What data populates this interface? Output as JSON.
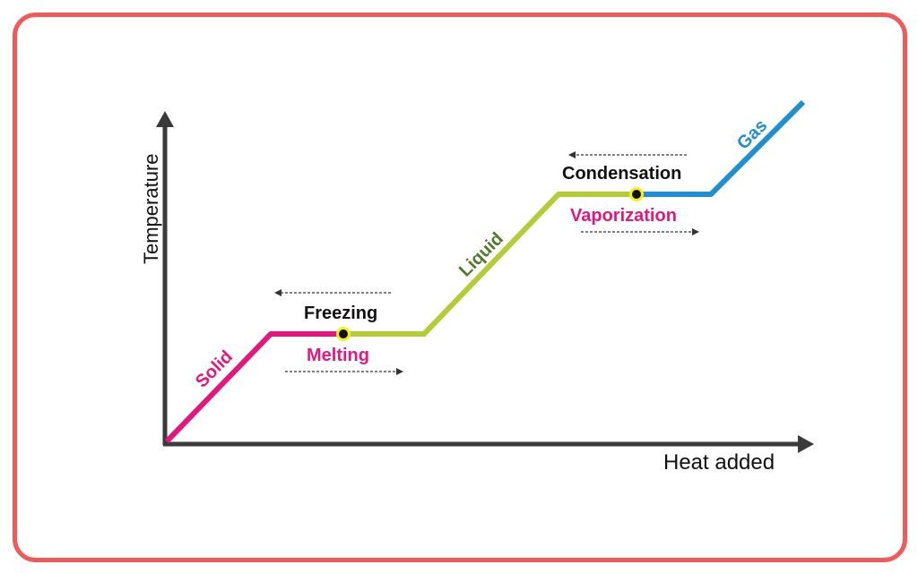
{
  "axes": {
    "x_label": "Heat added",
    "y_label": "Temperature"
  },
  "segments": {
    "solid": "Solid",
    "liquid": "Liquid",
    "gas": "Gas"
  },
  "transitions": {
    "freezing": "Freezing",
    "melting": "Melting",
    "condensation": "Condensation",
    "vaporization": "Vaporization"
  },
  "colors": {
    "frame": "#f25a5a",
    "solid": "#e5177e",
    "liquid": "#b4cc35",
    "liquid_label": "#4f7a2a",
    "gas": "#1f8fd1",
    "axis": "#3a3a3a",
    "marker_fill": "#f3f21a",
    "text_dark": "#111111"
  }
}
